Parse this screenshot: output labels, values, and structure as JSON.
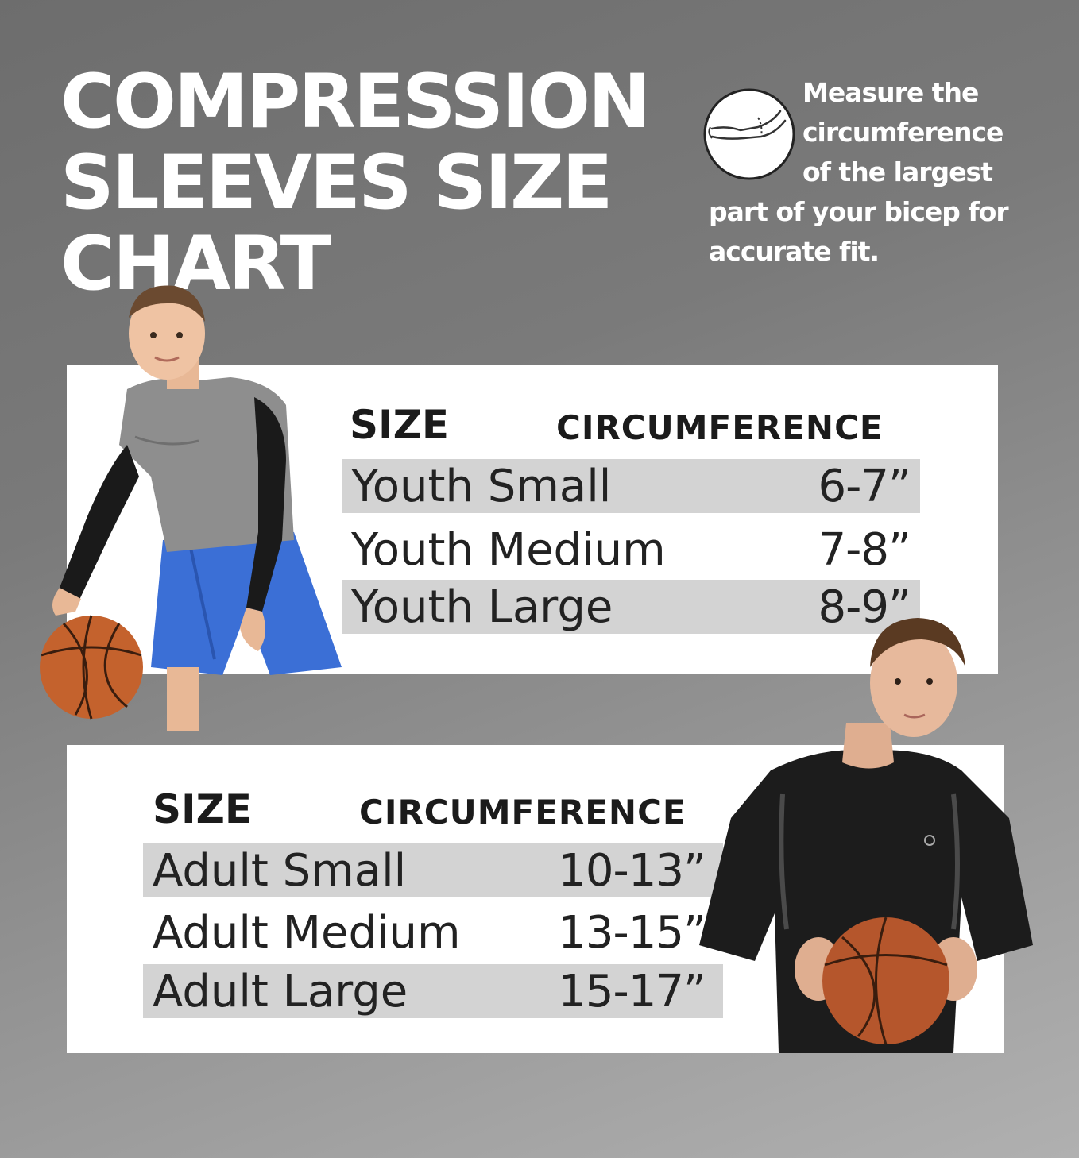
{
  "title": {
    "line1": "COMPRESSION",
    "line2": "SLEEVES SIZE",
    "line3": "CHART"
  },
  "measure": {
    "icon": "arm-measure-icon",
    "lines": [
      "Measure the",
      "circumference",
      "of the largest",
      "part of your bicep for",
      "accurate fit."
    ]
  },
  "youth_table": {
    "headers": {
      "size": "SIZE",
      "circumference": "CIRCUMFERENCE"
    },
    "rows": [
      {
        "size": "Youth Small",
        "circumference": "6-7”",
        "shaded": true
      },
      {
        "size": "Youth Medium",
        "circumference": "7-8”",
        "shaded": false
      },
      {
        "size": "Youth Large",
        "circumference": "8-9”",
        "shaded": true
      }
    ]
  },
  "adult_table": {
    "headers": {
      "size": "SIZE",
      "circumference": "CIRCUMFERENCE"
    },
    "rows": [
      {
        "size": "Adult Small",
        "circumference": "10-13”",
        "shaded": true
      },
      {
        "size": "Adult Medium",
        "circumference": "13-15”",
        "shaded": false
      },
      {
        "size": "Adult Large",
        "circumference": "15-17”",
        "shaded": true
      }
    ]
  },
  "photos": {
    "youth": "boy-basketball-photo",
    "adult": "man-basketball-photo"
  },
  "colors": {
    "row_shade": "#d3d3d3",
    "card": "#ffffff",
    "title": "#ffffff",
    "text": "#1b1b1b"
  }
}
